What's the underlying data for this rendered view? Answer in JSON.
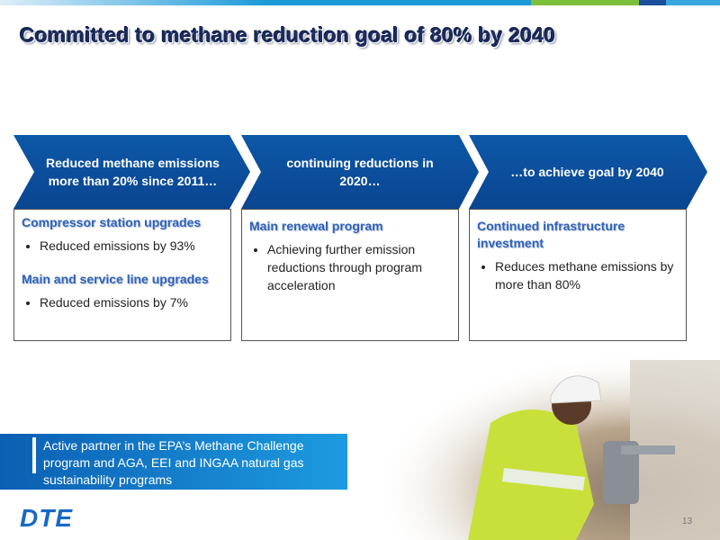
{
  "header": {
    "title": "Committed to methane reduction goal of 80% by 2040"
  },
  "steps": [
    {
      "heading": "Reduced methane emissions more than 20% since 2011…",
      "sections": [
        {
          "title": "Compressor station upgrades",
          "bullets": [
            "Reduced emissions by 93%"
          ]
        },
        {
          "title": "Main and service line upgrades",
          "bullets": [
            "Reduced emissions by 7%"
          ]
        }
      ]
    },
    {
      "heading": "continuing reductions in 2020…",
      "sections": [
        {
          "title": "Main renewal program",
          "bullets": [
            "Achieving further emission reductions through program acceleration"
          ]
        }
      ]
    },
    {
      "heading": "…to achieve goal by 2040",
      "sections": [
        {
          "title": "Continued infrastructure investment",
          "bullets": [
            "Reduces methane emissions by more than 80%"
          ]
        }
      ]
    }
  ],
  "callout": "Active partner in the EPA’s Methane Challenge program and AGA, EEI and INGAA natural gas sustainability programs",
  "logo": "DTE",
  "page_number": "13"
}
